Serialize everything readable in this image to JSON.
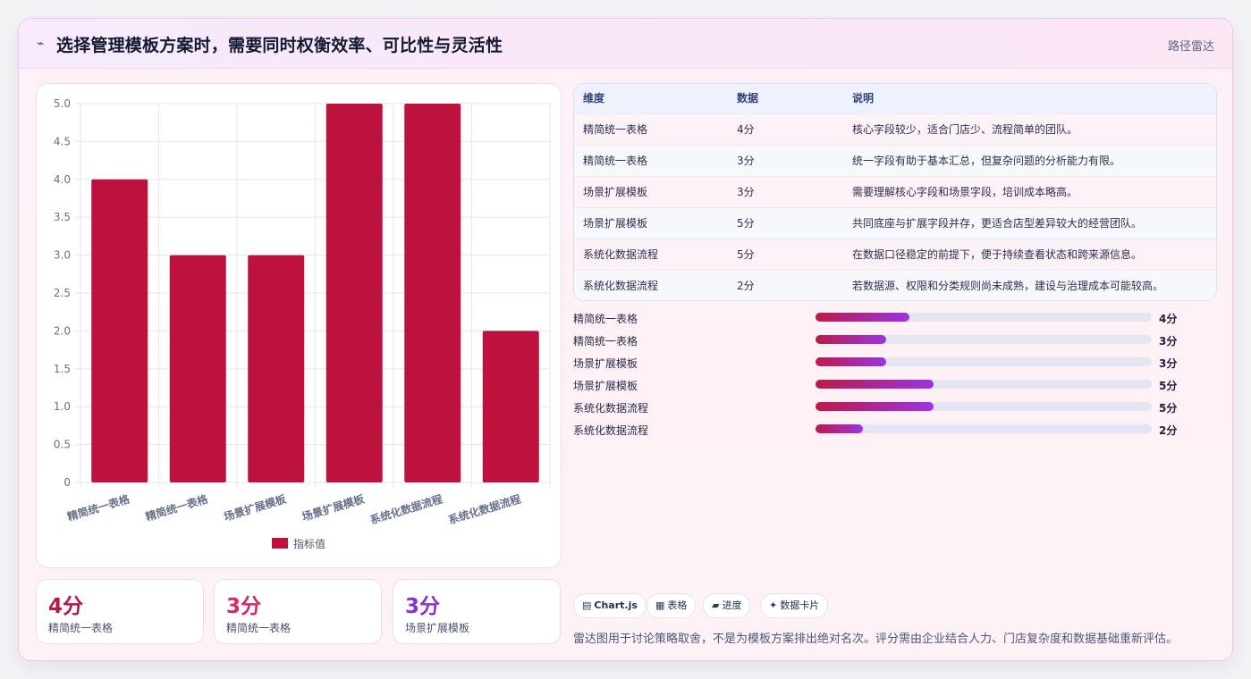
{
  "header": {
    "glyph": "⌁",
    "title": "选择管理模板方案时，需要同时权衡效率、可比性与灵活性",
    "tag": "路径雷达"
  },
  "chart_data": {
    "type": "bar",
    "categories": [
      "精简统一表格",
      "精简统一表格",
      "场景扩展模板",
      "场景扩展模板",
      "系统化数据流程",
      "系统化数据流程"
    ],
    "series": [
      {
        "name": "指标值",
        "values": [
          4,
          3,
          3,
          5,
          5,
          2
        ]
      }
    ],
    "ylim": [
      0,
      5
    ],
    "yticks": [
      "0",
      "0.5",
      "1.0",
      "1.5",
      "2.0",
      "2.5",
      "3.0",
      "3.5",
      "4.0",
      "4.5",
      "5.0"
    ],
    "grid": true,
    "legend": "bottom",
    "color": "#bd123d"
  },
  "table": {
    "headers": [
      "维度",
      "数据",
      "说明"
    ],
    "rows": [
      [
        "精简统一表格",
        "4分",
        "核心字段较少，适合门店少、流程简单的团队。"
      ],
      [
        "精简统一表格",
        "3分",
        "统一字段有助于基本汇总，但复杂问题的分析能力有限。"
      ],
      [
        "场景扩展模板",
        "3分",
        "需要理解核心字段和场景字段，培训成本略高。"
      ],
      [
        "场景扩展模板",
        "5分",
        "共同底座与扩展字段并存，更适合店型差异较大的经营团队。"
      ],
      [
        "系统化数据流程",
        "5分",
        "在数据口径稳定的前提下，便于持续查看状态和跨来源信息。"
      ],
      [
        "系统化数据流程",
        "2分",
        "若数据源、权限和分类规则尚未成熟，建设与治理成本可能较高。"
      ]
    ]
  },
  "progress": {
    "max": 5,
    "items": [
      {
        "label": "精简统一表格",
        "value": 4,
        "value_text": "4分"
      },
      {
        "label": "精简统一表格",
        "value": 3,
        "value_text": "3分"
      },
      {
        "label": "场景扩展模板",
        "value": 3,
        "value_text": "3分"
      },
      {
        "label": "场景扩展模板",
        "value": 5,
        "value_text": "5分"
      },
      {
        "label": "系统化数据流程",
        "value": 5,
        "value_text": "5分"
      },
      {
        "label": "系统化数据流程",
        "value": 2,
        "value_text": "2分"
      }
    ]
  },
  "kpis": [
    {
      "value": "4分",
      "label": "精简统一表格",
      "color": "#b8174a"
    },
    {
      "value": "3分",
      "label": "精简统一表格",
      "color": "#d8266a"
    },
    {
      "value": "3分",
      "label": "场景扩展模板",
      "color": "#8a2fd6"
    }
  ],
  "chips": [
    {
      "icon": "▤",
      "label": "Chart.js"
    },
    {
      "icon": "▦",
      "label": "表格"
    },
    {
      "icon": "▰",
      "label": "进度"
    },
    {
      "icon": "✦",
      "label": "数据卡片"
    }
  ],
  "note": "雷达图用于讨论策略取舍，不是为模板方案排出绝对名次。评分需由企业结合人力、门店复杂度和数据基础重新评估。"
}
